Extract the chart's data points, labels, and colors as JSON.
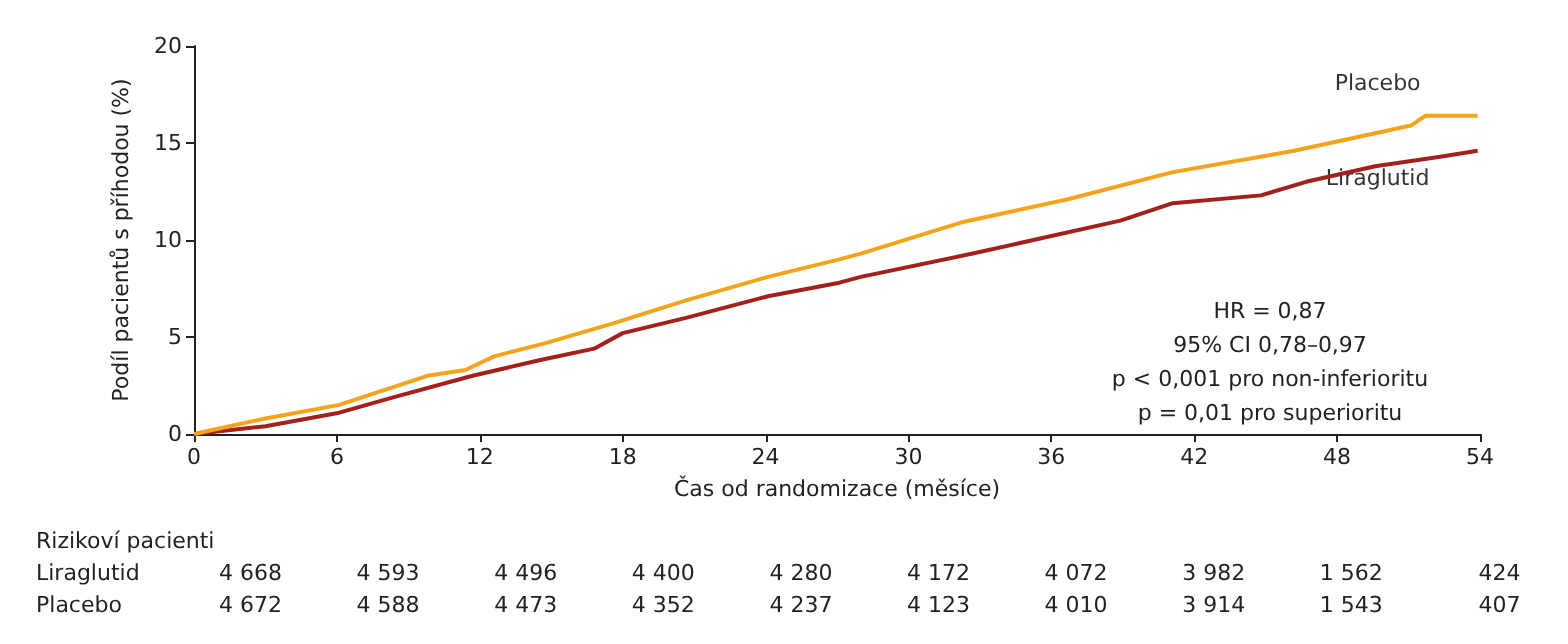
{
  "chart_data": {
    "type": "line",
    "xlabel": "Čas od randomizace (měsíce)",
    "ylabel": "Podíl pacientů s příhodou (%)",
    "xlim": [
      0,
      54
    ],
    "xticks": [
      0,
      6,
      12,
      18,
      24,
      30,
      36,
      42,
      48,
      54
    ],
    "ylim": [
      0,
      20
    ],
    "yticks": [
      0,
      5,
      10,
      15,
      20
    ],
    "grid": false,
    "legend": false,
    "marker": "none",
    "line_style": "solid",
    "series": [
      {
        "name": "Liraglutid",
        "color": "#a3201c",
        "x": [
          0,
          3.0,
          6.1,
          8.4,
          11.7,
          14.5,
          16.8,
          18.0,
          20.7,
          24.1,
          27.1,
          28.0,
          32.7,
          38.9,
          41.1,
          44.8,
          46.7,
          49.6,
          52.4,
          53.9
        ],
        "values": [
          0,
          0.4,
          1.1,
          1.9,
          3.0,
          3.8,
          4.4,
          5.2,
          6.0,
          7.1,
          7.8,
          8.1,
          9.3,
          11.0,
          11.9,
          12.3,
          13.0,
          13.8,
          14.3,
          14.6
        ]
      },
      {
        "name": "Placebo",
        "color": "#f5a31a",
        "x": [
          0,
          3.0,
          6.1,
          9.8,
          11.4,
          12.6,
          14.8,
          17.6,
          20.7,
          24.1,
          27.1,
          28.0,
          32.2,
          36.7,
          41.1,
          46.2,
          49.6,
          51.1,
          51.7,
          53.9
        ],
        "values": [
          0,
          0.8,
          1.5,
          3.0,
          3.3,
          4.0,
          4.7,
          5.7,
          6.9,
          8.1,
          9.0,
          9.3,
          10.9,
          12.1,
          13.5,
          14.6,
          15.5,
          15.9,
          16.4,
          16.4
        ]
      }
    ],
    "annotations": [
      "HR = 0,87",
      "95% CI 0,78–0,97",
      "p < 0,001 pro non-inferioritu",
      "p = 0,01 pro superioritu",
      "Rizikoví pacienti",
      "4 668",
      "4 593",
      "4 496",
      "4 400",
      "4 280",
      "4 172",
      "4 072",
      "3 982",
      "1 562",
      "424",
      "4 672",
      "4 588",
      "4 473",
      "4 352",
      "4 237",
      "4 123",
      "4 010",
      "3 914",
      "1 543",
      "407"
    ]
  }
}
